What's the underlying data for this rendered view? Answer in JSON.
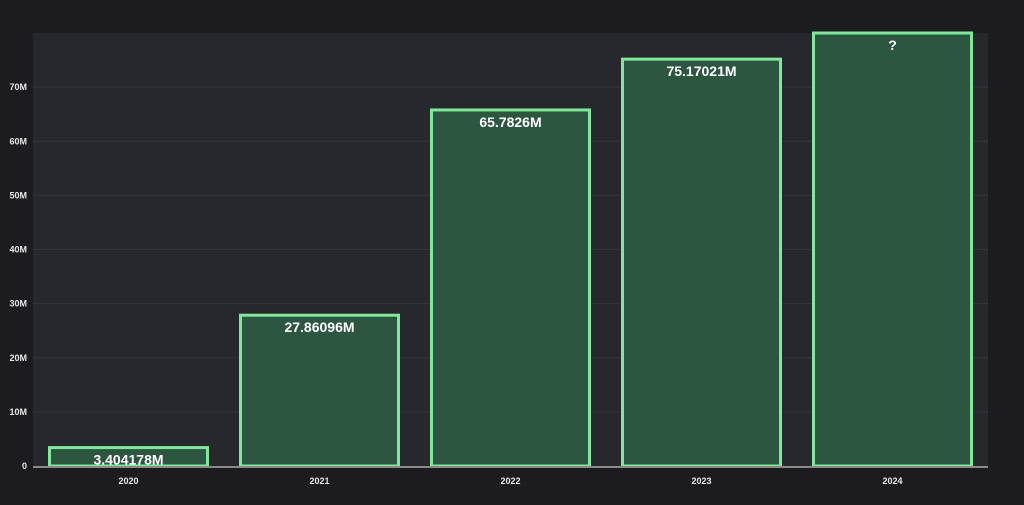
{
  "chart_data": {
    "type": "bar",
    "categories": [
      "2020",
      "2021",
      "2022",
      "2023",
      "2024"
    ],
    "values": [
      3.404178,
      27.86096,
      65.7826,
      75.17021,
      80
    ],
    "data_labels": [
      "3.404178M",
      "27.86096M",
      "65.7826M",
      "75.17021M",
      "?"
    ],
    "unit": "M",
    "ylim": [
      0,
      80
    ],
    "yticks": [
      0,
      10,
      20,
      30,
      40,
      50,
      60,
      70
    ],
    "ytick_labels": [
      "0",
      "10M",
      "20M",
      "30M",
      "40M",
      "50M",
      "60M",
      "70M"
    ],
    "grid": true,
    "title": "",
    "xlabel": "",
    "ylabel": "",
    "colors": {
      "background": "#1c1c1e",
      "plot_background": "#26282c",
      "grid": "#34363b",
      "bar_fill": "#2d5641",
      "bar_stroke": "#7fe89a",
      "axis": "#8a8a8a",
      "text": "#e6e6e6"
    }
  }
}
